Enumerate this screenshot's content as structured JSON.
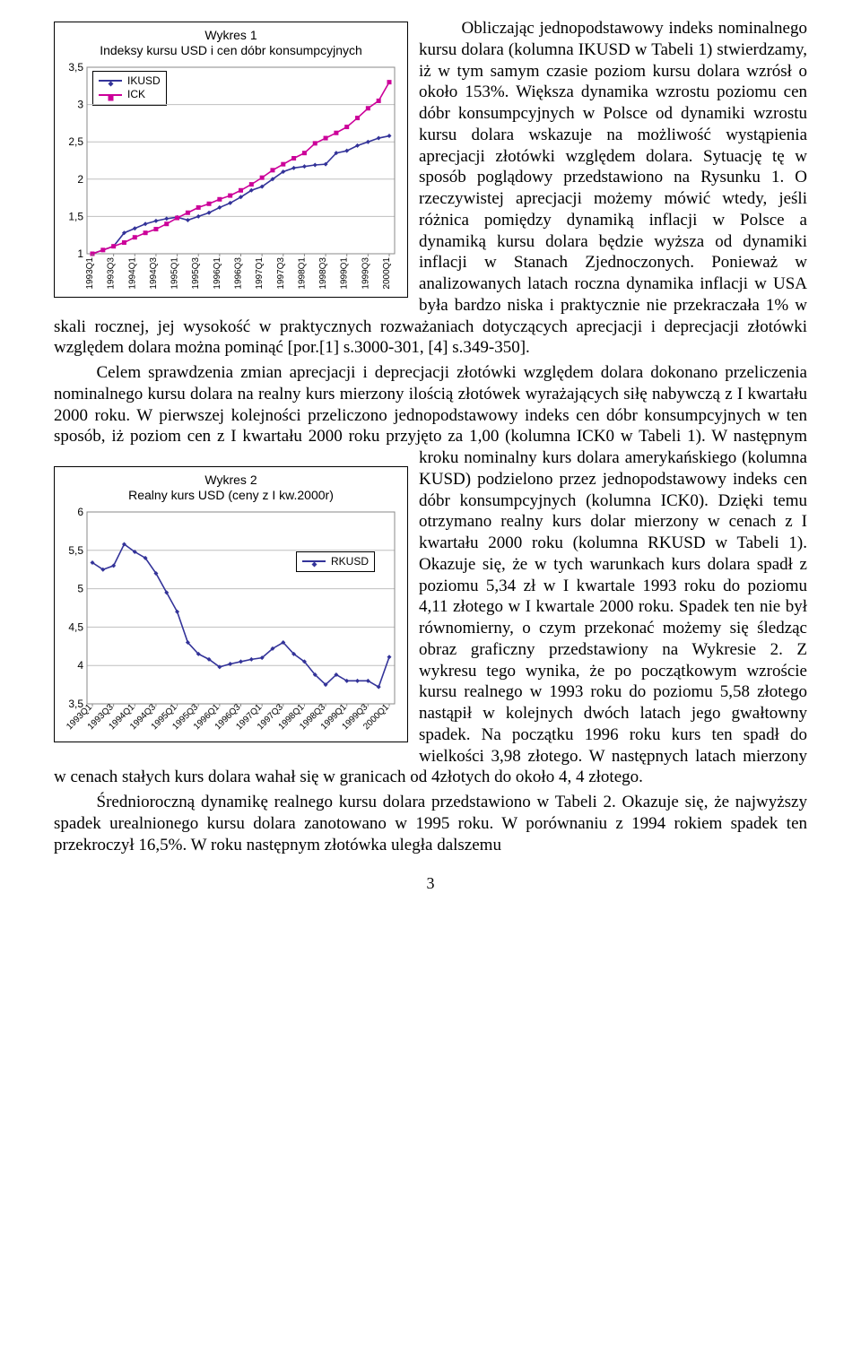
{
  "chart1": {
    "title_line1": "Wykres 1",
    "title_line2": "Indeksy kursu USD i cen dóbr konsumpcyjnych",
    "legend_items": [
      "IKUSD",
      "ICK"
    ],
    "series_colors": [
      "#333399",
      "#cc0099"
    ],
    "marker_shapes": [
      "diamond",
      "square"
    ],
    "x_categories": [
      "1993Q1",
      "1993Q3",
      "1994Q1",
      "1994Q3",
      "1995Q1",
      "1995Q3",
      "1996Q1",
      "1996Q3",
      "1997Q1",
      "1997Q3",
      "1998Q1",
      "1998Q3",
      "1999Q1",
      "1999Q3",
      "2000Q1"
    ],
    "y_min": 1,
    "y_max": 3.5,
    "y_step": 0.5,
    "y_ticks": [
      "1",
      "1,5",
      "2",
      "2,5",
      "3",
      "3,5"
    ],
    "grid_color": "#bfbfbf",
    "line_width": 1.6,
    "marker_size": 5,
    "background_color": "#ffffff",
    "n_points": 29,
    "ikusd": [
      1.0,
      1.05,
      1.1,
      1.28,
      1.34,
      1.4,
      1.44,
      1.47,
      1.49,
      1.45,
      1.5,
      1.55,
      1.62,
      1.68,
      1.76,
      1.85,
      1.9,
      2.0,
      2.1,
      2.15,
      2.17,
      2.19,
      2.2,
      2.35,
      2.38,
      2.45,
      2.5,
      2.55,
      2.58
    ],
    "ick": [
      1.0,
      1.05,
      1.1,
      1.15,
      1.22,
      1.28,
      1.33,
      1.4,
      1.48,
      1.55,
      1.62,
      1.67,
      1.73,
      1.78,
      1.85,
      1.93,
      2.02,
      2.12,
      2.2,
      2.28,
      2.35,
      2.48,
      2.55,
      2.62,
      2.7,
      2.82,
      2.95,
      3.05,
      3.3
    ]
  },
  "chart2": {
    "title_line1": "Wykres 2",
    "title_line2": "Realny kurs USD (ceny z I kw.2000r)",
    "legend_items": [
      "RKUSD"
    ],
    "series_colors": [
      "#333399"
    ],
    "marker_shapes": [
      "diamond"
    ],
    "x_categories": [
      "1993Q1",
      "1993Q3",
      "1994Q1",
      "1994Q3",
      "1995Q1",
      "1995Q3",
      "1996Q1",
      "1996Q3",
      "1997Q1",
      "1997Q3",
      "1998Q1",
      "1998Q3",
      "1999Q1",
      "1999Q3",
      "2000Q1"
    ],
    "y_min": 3.5,
    "y_max": 6,
    "y_step": 0.5,
    "y_ticks": [
      "3,5",
      "4",
      "4,5",
      "5",
      "5,5",
      "6"
    ],
    "grid_color": "#bfbfbf",
    "line_width": 1.6,
    "marker_size": 5,
    "background_color": "#ffffff",
    "n_points": 29,
    "rkusd": [
      5.34,
      5.25,
      5.3,
      5.58,
      5.48,
      5.4,
      5.2,
      4.95,
      4.7,
      4.3,
      4.15,
      4.08,
      3.98,
      4.02,
      4.05,
      4.08,
      4.1,
      4.22,
      4.3,
      4.15,
      4.05,
      3.88,
      3.75,
      3.88,
      3.8,
      3.8,
      3.8,
      3.72,
      4.11
    ]
  },
  "text": {
    "p1": "Obliczając jednopodstawowy indeks nominalnego kursu dolara (kolumna IKUSD w Tabeli 1) stwierdzamy, iż w tym samym czasie poziom kursu dolara wzrósł o około 153%. Większa dynamika wzrostu poziomu cen dóbr konsumpcyjnych w Polsce od dynamiki wzrostu kursu dolara wskazuje na możliwość wystąpienia aprecjacji złotówki względem dolara. Sytuację tę w sposób poglądowy przedstawiono na Rysunku 1. O rzeczywistej aprecjacji możemy mówić wtedy, jeśli różnica pomiędzy dynamiką inflacji w Polsce a dynamiką kursu dolara będzie wyższa od dynamiki inflacji w Stanach Zjednoczonych. Ponieważ w analizowanych latach roczna dynamika inflacji w USA była bardzo niska i praktycznie nie przekraczała 1% w skali rocznej, jej wysokość w praktycznych rozważaniach dotyczących aprecjacji i deprecjacji złotówki względem dolara można pominąć [por.[1] s.3000-301, [4] s.349-350].",
    "p2": "Celem sprawdzenia zmian aprecjacji i deprecjacji złotówki względem dolara dokonano przeliczenia nominalnego kursu dolara na realny kurs mierzony ilością złotówek wyrażających siłę nabywczą z I kwartału 2000 roku. W pierwszej kolejności przeliczono jednopodstawowy indeks cen dóbr konsumpcyjnych w ten sposób, iż poziom cen z I kwartału 2000 roku przyjęto za 1,00 (kolumna ICK0 w Tabeli 1). W następnym kroku nominalny kurs dolara amerykańskiego (kolumna KUSD) podzielono przez jednopodstawowy indeks cen dóbr konsumpcyjnych (kolumna ICK0). Dzięki temu otrzymano realny kurs dolar mierzony w cenach z I kwartału 2000 roku (kolumna RKUSD w Tabeli 1). Okazuje się, że w tych warunkach kurs dolara spadł z poziomu 5,34 zł w I kwartale 1993 roku do poziomu 4,11 złotego w I kwartale 2000 roku. Spadek ten nie był równomierny, o czym przekonać możemy się śledząc obraz graficzny przedstawiony na Wykresie 2. Z wykresu tego wynika, że po początkowym wzroście kursu realnego w 1993 roku do poziomu 5,58 złotego nastąpił w kolejnych dwóch latach jego gwałtowny spadek. Na początku 1996 roku kurs ten spadł do wielkości 3,98 złotego. W następnych latach mierzony w cenach stałych kurs dolara wahał się w granicach od 4złotych do około 4, 4 złotego.",
    "p3": "Średnioroczną dynamikę realnego kursu dolara przedstawiono w Tabeli 2. Okazuje się, że najwyższy spadek urealnionego kursu dolara zanotowano w 1995 roku. W porównaniu z 1994 rokiem spadek ten przekroczył 16,5%. W roku następnym złotówka uległa dalszemu"
  },
  "page_number": "3"
}
